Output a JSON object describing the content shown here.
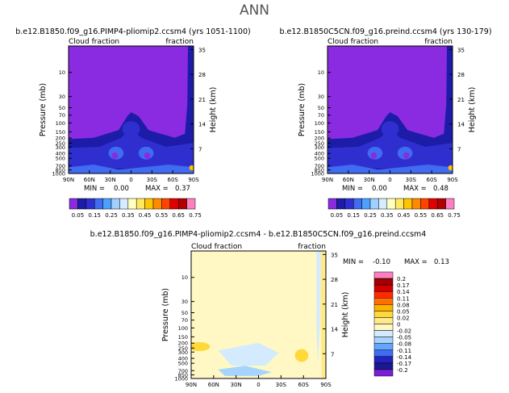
{
  "page_title": "ANN",
  "colors": {
    "pal_abs": [
      "#8a2be2",
      "#1c1ca8",
      "#2f2fd0",
      "#3f6cf0",
      "#4ea0ff",
      "#9fd0ff",
      "#d8ecff",
      "#ffffc0",
      "#ffe860",
      "#ffc400",
      "#ff8a00",
      "#ff4400",
      "#e00000",
      "#b00000",
      "#ff80c0"
    ],
    "pal_diff": [
      "#7a1ed8",
      "#1a1a8f",
      "#2323c2",
      "#3f6cf0",
      "#62a6ff",
      "#a6d4ff",
      "#d4ebff",
      "#fff8c4",
      "#ffe98a",
      "#ffd83a",
      "#ffb000",
      "#ff7000",
      "#ff2a00",
      "#d40000",
      "#a00000",
      "#ff80c0"
    ]
  },
  "chart_data": [
    {
      "type": "heatmap",
      "title": "b.e12.B1850.f09_g16.PIMP4-pliomip2.ccsm4 (yrs 1051-1100)",
      "left_label": "Cloud fraction",
      "right_label": "fraction",
      "ylabel": "Pressure (mb)",
      "ylabel_right": "Height (km)",
      "x_ticks": [
        "90N",
        "60N",
        "30N",
        "0",
        "30S",
        "60S",
        "90S"
      ],
      "y_ticks": [
        "10",
        "30",
        "50",
        "70",
        "100",
        "150",
        "200",
        "250",
        "300",
        "400",
        "500",
        "700",
        "850",
        "1000"
      ],
      "height_ticks": [
        "35",
        "28",
        "21",
        "14",
        "7"
      ],
      "stats": {
        "min_label": "MIN =",
        "min": "0.00",
        "max_label": "MAX =",
        "max": "0.37"
      },
      "colorbar_labels": [
        "0.05",
        "0.15",
        "0.25",
        "0.35",
        "0.45",
        "0.55",
        "0.65",
        "0.75"
      ]
    },
    {
      "type": "heatmap",
      "title": "b.e12.B1850C5CN.f09_g16.preind.ccsm4 (yrs 130-179)",
      "left_label": "Cloud fraction",
      "right_label": "fraction",
      "ylabel": "Pressure (mb)",
      "ylabel_right": "Height (km)",
      "x_ticks": [
        "90N",
        "60N",
        "30N",
        "0",
        "30S",
        "60S",
        "90S"
      ],
      "y_ticks": [
        "10",
        "30",
        "50",
        "70",
        "100",
        "150",
        "200",
        "250",
        "300",
        "400",
        "500",
        "700",
        "850",
        "1000"
      ],
      "height_ticks": [
        "35",
        "28",
        "21",
        "14",
        "7"
      ],
      "stats": {
        "min_label": "MIN =",
        "min": "0.00",
        "max_label": "MAX =",
        "max": "0.48"
      },
      "colorbar_labels": [
        "0.05",
        "0.15",
        "0.25",
        "0.35",
        "0.45",
        "0.55",
        "0.65",
        "0.75"
      ]
    },
    {
      "type": "heatmap",
      "title": "b.e12.B1850.f09_g16.PIMP4-pliomip2.ccsm4 - b.e12.B1850C5CN.f09_g16.preind.ccsm4",
      "left_label": "Cloud fraction",
      "right_label": "fraction",
      "ylabel": "Pressure (mb)",
      "ylabel_right": "Height (km)",
      "x_ticks": [
        "90N",
        "60N",
        "30N",
        "0",
        "30S",
        "60S",
        "90S"
      ],
      "y_ticks": [
        "10",
        "30",
        "50",
        "70",
        "100",
        "150",
        "200",
        "250",
        "300",
        "400",
        "500",
        "700",
        "850",
        "1000"
      ],
      "height_ticks": [
        "35",
        "28",
        "21",
        "14",
        "7"
      ],
      "stats": {
        "min_label": "MIN =",
        "min": "-0.10",
        "max_label": "MAX =",
        "max": "0.13"
      },
      "colorbar_labels": [
        "0.2",
        "0.17",
        "0.14",
        "0.11",
        "0.08",
        "0.05",
        "0.02",
        "0",
        "-0.02",
        "-0.05",
        "-0.08",
        "-0.11",
        "-0.14",
        "-0.17",
        "-0.2"
      ]
    }
  ]
}
